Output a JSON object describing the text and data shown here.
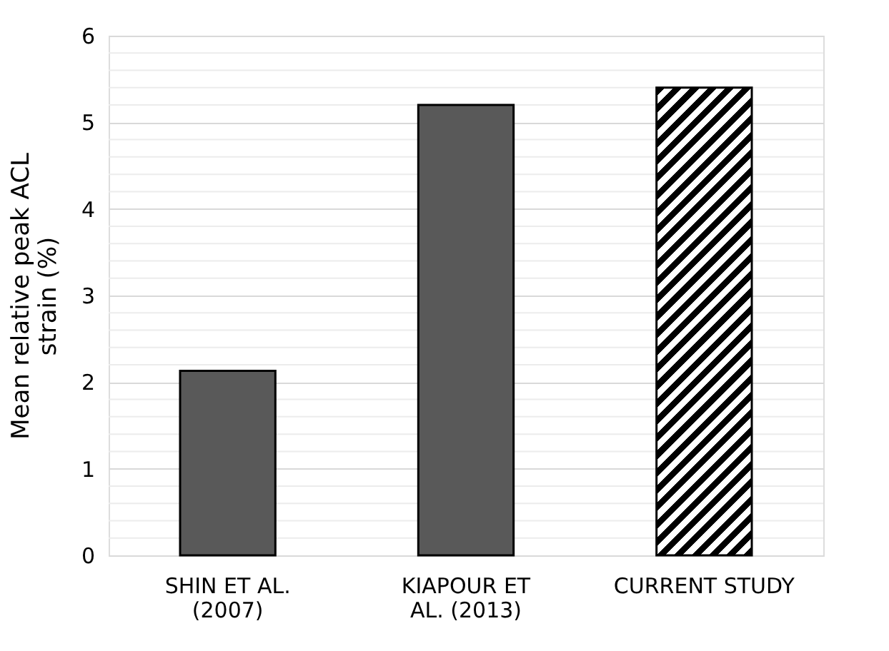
{
  "chart_data": {
    "type": "bar",
    "ylabel": "Mean relative peak ACL strain (%)",
    "categories": [
      "SHIN ET AL. (2007)",
      "KIAPOUR ET AL. (2013)",
      "CURRENT STUDY"
    ],
    "values": [
      2.13,
      5.2,
      5.4
    ],
    "colors": [
      "#595959",
      "#595959",
      "#000000"
    ],
    "ylim": [
      0,
      6
    ],
    "yticks": [
      0,
      1,
      2,
      3,
      4,
      5,
      6
    ],
    "grid": "y",
    "legend": false
  }
}
